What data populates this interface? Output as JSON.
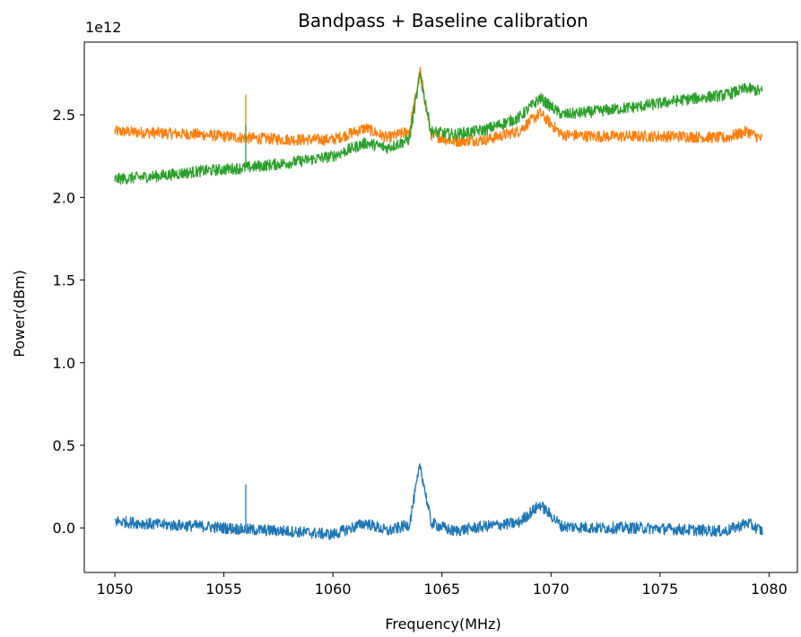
{
  "chart_data": {
    "type": "line",
    "title": "Bandpass + Baseline calibration",
    "xlabel": "Frequency(MHz)",
    "ylabel": "Power(dBm)",
    "y_offset_label": "1e12",
    "xlim": [
      1048.6,
      1081.3
    ],
    "ylim": [
      -0.27,
      2.94
    ],
    "x_ticks": [
      1050,
      1055,
      1060,
      1065,
      1070,
      1075,
      1080
    ],
    "y_ticks": [
      0.0,
      0.5,
      1.0,
      1.5,
      2.0,
      2.5
    ],
    "x_tick_labels": [
      "1050",
      "1055",
      "1060",
      "1065",
      "1070",
      "1075",
      "1080"
    ],
    "y_tick_labels": [
      "0.0",
      "0.5",
      "1.0",
      "1.5",
      "2.0",
      "2.5"
    ],
    "grid": false,
    "y_scale_note": "values in units of 1e12",
    "series": [
      {
        "color": "#ff7f0e",
        "x": [
          1050,
          1052,
          1054,
          1056,
          1058,
          1060,
          1061.5,
          1062.5,
          1063.5,
          1064,
          1064.5,
          1065.5,
          1067,
          1068.5,
          1069.5,
          1070.5,
          1072,
          1074,
          1076,
          1078,
          1079,
          1079.7
        ],
        "y": [
          2.4,
          2.39,
          2.38,
          2.36,
          2.35,
          2.35,
          2.42,
          2.36,
          2.4,
          2.76,
          2.38,
          2.34,
          2.35,
          2.4,
          2.51,
          2.38,
          2.37,
          2.37,
          2.37,
          2.36,
          2.4,
          2.35
        ]
      },
      {
        "color": "#2ca02c",
        "x": [
          1050,
          1052,
          1054,
          1056,
          1058,
          1060,
          1061.5,
          1062.5,
          1063.5,
          1064,
          1064.5,
          1065.5,
          1067,
          1068.5,
          1069.5,
          1070.5,
          1072,
          1074,
          1076,
          1078,
          1079,
          1079.7
        ],
        "y": [
          2.11,
          2.13,
          2.16,
          2.18,
          2.21,
          2.25,
          2.33,
          2.3,
          2.35,
          2.74,
          2.4,
          2.38,
          2.41,
          2.48,
          2.6,
          2.5,
          2.52,
          2.55,
          2.59,
          2.62,
          2.66,
          2.64
        ]
      },
      {
        "color": "#1f77b4",
        "x": [
          1050,
          1052,
          1054,
          1056,
          1058,
          1060,
          1061.5,
          1062.5,
          1063.5,
          1064,
          1064.5,
          1065.5,
          1067,
          1068.5,
          1069.5,
          1070.5,
          1072,
          1074,
          1076,
          1078,
          1079,
          1079.7
        ],
        "y": [
          0.04,
          0.02,
          0.01,
          -0.01,
          -0.02,
          -0.04,
          0.03,
          -0.02,
          0.02,
          0.38,
          0.03,
          -0.02,
          0.01,
          0.03,
          0.14,
          0.01,
          0.0,
          0.0,
          -0.01,
          -0.02,
          0.03,
          -0.02
        ]
      }
    ],
    "annotations": [
      {
        "x": 1056,
        "series_index": 0,
        "spike_y": 2.62
      },
      {
        "x": 1056,
        "series_index": 1,
        "spike_y": 2.44
      },
      {
        "x": 1056,
        "series_index": 2,
        "spike_y": 0.26
      }
    ]
  }
}
